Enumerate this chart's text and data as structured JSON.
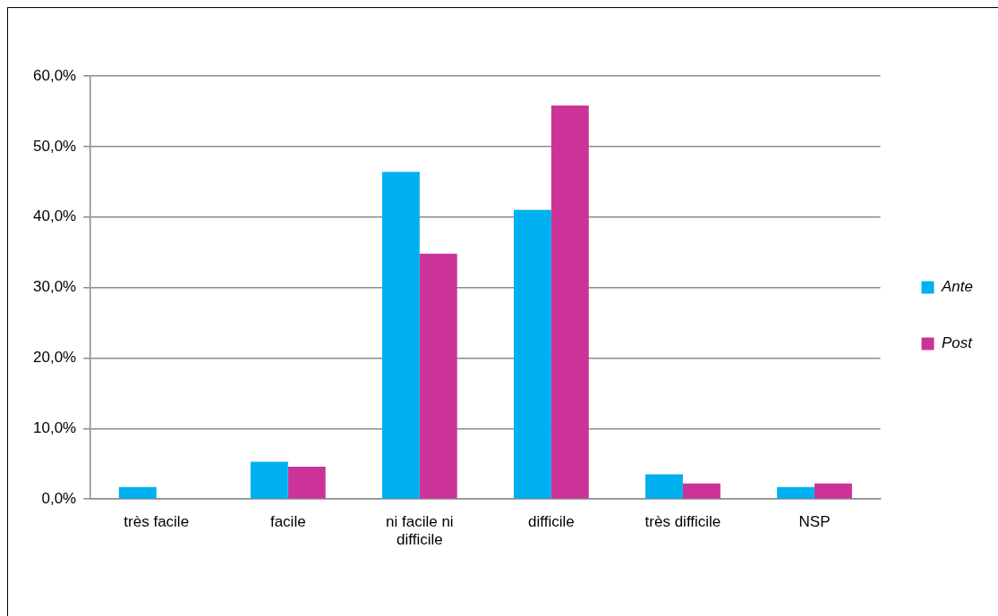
{
  "chart_data": {
    "type": "bar",
    "categories": [
      "très facile",
      "facile",
      "ni facile ni difficile",
      "difficile",
      "très difficile",
      "NSP"
    ],
    "series": [
      {
        "name": "Ante",
        "color": "#00b0f0",
        "values": [
          1.7,
          5.3,
          46.4,
          41.0,
          3.5,
          1.7
        ]
      },
      {
        "name": "Post",
        "color": "#cc3399",
        "values": [
          0,
          4.6,
          34.8,
          55.8,
          2.2,
          2.2
        ]
      }
    ],
    "ylim": [
      0,
      60
    ],
    "yticks": [
      {
        "value": 0,
        "label": "0,0%"
      },
      {
        "value": 10,
        "label": "10,0%"
      },
      {
        "value": 20,
        "label": "20,0%"
      },
      {
        "value": 30,
        "label": "30,0%"
      },
      {
        "value": 40,
        "label": "40,0%"
      },
      {
        "value": 50,
        "label": "50,0%"
      },
      {
        "value": 60,
        "label": "60,0%"
      }
    ],
    "grid": "y",
    "legend": "right"
  }
}
